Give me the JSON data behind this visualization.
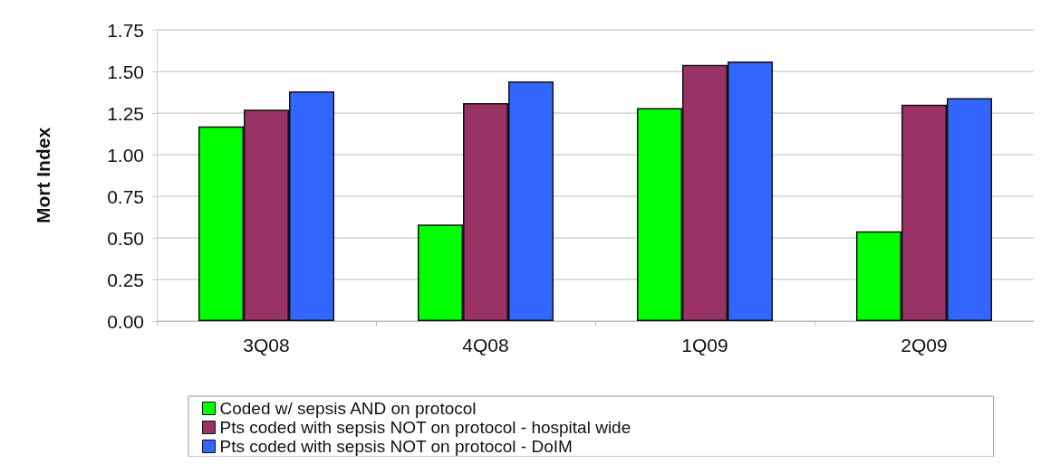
{
  "chart_data": {
    "type": "bar",
    "ylabel": "Mort Index",
    "categories": [
      "3Q08",
      "4Q08",
      "1Q09",
      "2Q09"
    ],
    "series": [
      {
        "name": "Coded w/ sepsis AND on protocol",
        "color": "#00ff00",
        "values": [
          1.17,
          0.58,
          1.28,
          0.54
        ]
      },
      {
        "name": "Pts coded with sepsis NOT on protocol - hospital wide",
        "color": "#993366",
        "values": [
          1.27,
          1.31,
          1.54,
          1.3
        ]
      },
      {
        "name": "Pts coded with sepsis NOT on protocol - DoIM",
        "color": "#3366ff",
        "values": [
          1.38,
          1.44,
          1.56,
          1.34
        ]
      }
    ],
    "ylim": [
      0,
      1.75
    ],
    "yticks": [
      {
        "value": 0,
        "label": "0.00"
      },
      {
        "value": 0.25,
        "label": "0.25"
      },
      {
        "value": 0.5,
        "label": "0.50"
      },
      {
        "value": 0.75,
        "label": "0.75"
      },
      {
        "value": 1,
        "label": "1.00"
      },
      {
        "value": 1.25,
        "label": "1.25"
      },
      {
        "value": 1.5,
        "label": "1.50"
      },
      {
        "value": 1.75,
        "label": "1.75"
      }
    ],
    "grid": "y",
    "legend": "bottom"
  }
}
